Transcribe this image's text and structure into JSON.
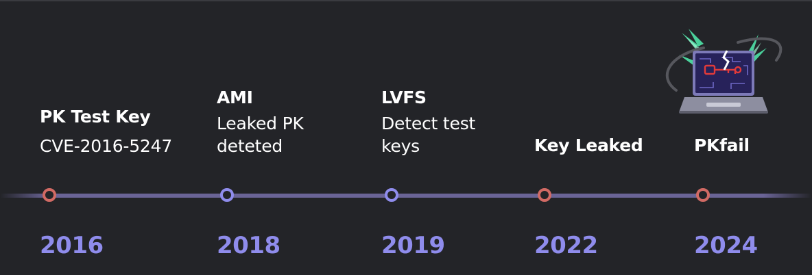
{
  "events": [
    {
      "title": "PK Test Key",
      "description": [
        "CVE-2016-5247"
      ],
      "year": "2016",
      "marker": "red"
    },
    {
      "title": "AMI",
      "description": [
        "Leaked PK",
        "deteted"
      ],
      "year": "2018",
      "marker": "purple"
    },
    {
      "title": "LVFS",
      "description": [
        "Detect test",
        "keys"
      ],
      "year": "2019",
      "marker": "purple"
    },
    {
      "title": "Key Leaked",
      "description": [],
      "year": "2022",
      "marker": "red"
    },
    {
      "title": "PKfail",
      "description": [],
      "year": "2024",
      "marker": "red"
    }
  ],
  "colors": {
    "background": "#232428",
    "track": "#6a6496",
    "marker_red": "#d16a64",
    "marker_purple": "#8f8cec",
    "year": "#8f8cec",
    "text": "#ffffff"
  },
  "illustration": "laptop-with-key-icon"
}
